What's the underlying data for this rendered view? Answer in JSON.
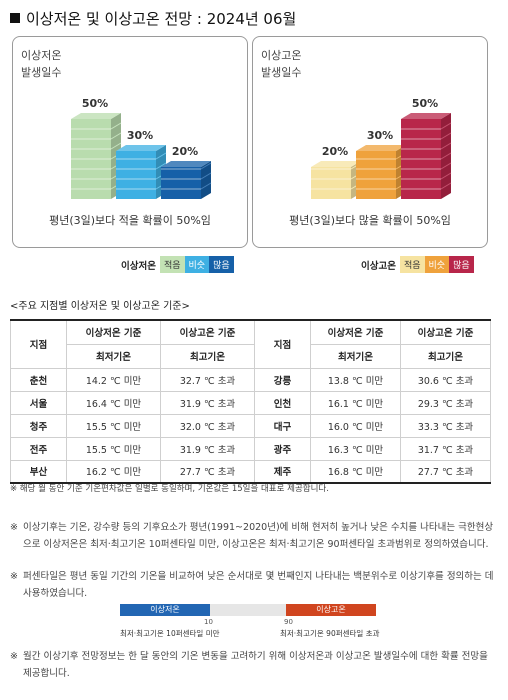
{
  "title": "이상저온 및 이상고온 전망 : 2024년 06월",
  "cards": {
    "cold": {
      "title": "이상저온\n발생일수",
      "caption": "평년(3일)보다 적을 확률이 50%임",
      "probabilities": [
        {
          "category": "적음",
          "percent": 50,
          "label": "50%"
        },
        {
          "category": "비슷",
          "percent": 30,
          "label": "30%"
        },
        {
          "category": "많음",
          "percent": 20,
          "label": "20%"
        }
      ],
      "colors": [
        "#b9dcae",
        "#3eb0e3",
        "#1660a8"
      ]
    },
    "hot": {
      "title": "이상고온\n발생일수",
      "caption": "평년(3일)보다 많을 확률이 50%임",
      "probabilities": [
        {
          "category": "적음",
          "percent": 20,
          "label": "20%"
        },
        {
          "category": "비슷",
          "percent": 30,
          "label": "30%"
        },
        {
          "category": "많음",
          "percent": 50,
          "label": "50%"
        }
      ],
      "colors": [
        "#f6e3a1",
        "#efa23c",
        "#b8264a"
      ]
    }
  },
  "legend": {
    "cold": {
      "name": "이상저온",
      "items": [
        {
          "label": "적음",
          "color": "#c3e2b4"
        },
        {
          "label": "비슷",
          "color": "#3eb0e3"
        },
        {
          "label": "많음",
          "color": "#1660a8"
        }
      ]
    },
    "hot": {
      "name": "이상고온",
      "items": [
        {
          "label": "적음",
          "color": "#f6e3a1"
        },
        {
          "label": "비슷",
          "color": "#efa23c"
        },
        {
          "label": "많음",
          "color": "#b8264a"
        }
      ]
    }
  },
  "table": {
    "heading": "<주요 지점별 이상저온 및 이상고온 기준>",
    "h_city": "지점",
    "h_cold": "이상저온 기준",
    "h_hot": "이상고온 기준",
    "h_min": "최저기온",
    "h_max": "최고기온",
    "rows": [
      {
        "c1": "춘천",
        "min1": "14.2 ℃ 미만",
        "max1": "32.7 ℃ 초과",
        "c2": "강릉",
        "min2": "13.8 ℃ 미만",
        "max2": "30.6 ℃ 초과"
      },
      {
        "c1": "서울",
        "min1": "16.4 ℃ 미만",
        "max1": "31.9 ℃ 초과",
        "c2": "인천",
        "min2": "16.1 ℃ 미만",
        "max2": "29.3 ℃ 초과"
      },
      {
        "c1": "청주",
        "min1": "15.5 ℃ 미만",
        "max1": "32.0 ℃ 초과",
        "c2": "대구",
        "min2": "16.0 ℃ 미만",
        "max2": "33.3 ℃ 초과"
      },
      {
        "c1": "전주",
        "min1": "15.5 ℃ 미만",
        "max1": "31.9 ℃ 초과",
        "c2": "광주",
        "min2": "16.3 ℃ 미만",
        "max2": "31.7 ℃ 초과"
      },
      {
        "c1": "부산",
        "min1": "16.2 ℃ 미만",
        "max1": "27.7 ℃ 초과",
        "c2": "제주",
        "min2": "16.8 ℃ 미만",
        "max2": "27.7 ℃ 초과"
      }
    ],
    "note": "※ 해당 월 동안 기준 기온편차값은 일별로 동일하며, 기온값은 15일을 대표로 제공합니다."
  },
  "notes": {
    "marker": "※",
    "p1": "이상기후는 기온, 강수량 등의 기후요소가 평년(1991~2020년)에 비해 현저히 높거나 낮은 수치를 나타내는 극한현상으로 이상저온은 최저·최고기온 10퍼센타일 미만, 이상고온은 최저·최고기온 90퍼센타일 초과범위로 정의하였습니다.",
    "p2": "퍼센타일은 평년 동일 기간의 기온을 비교하여 낮은 순서대로 몇 번째인지 나타내는 백분위수로 이상기후를 정의하는 데 사용하였습니다.",
    "p3": "월간 이상기후 전망정보는 한 달 동안의 기온 변동을 고려하기 위해 이상저온과 이상고온 발생일수에 대한 확률 전망을 제공합니다."
  },
  "percentile_scale": {
    "cold_label": "이상저온",
    "hot_label": "이상고온",
    "cold_value": "10",
    "hot_value": "90",
    "cold_caption": "최저·최고기온 10퍼센타일 미만",
    "hot_caption": "최저·최고기온 90퍼센타일 초과",
    "cold_color": "#2266b3",
    "hot_color": "#d0451f"
  }
}
